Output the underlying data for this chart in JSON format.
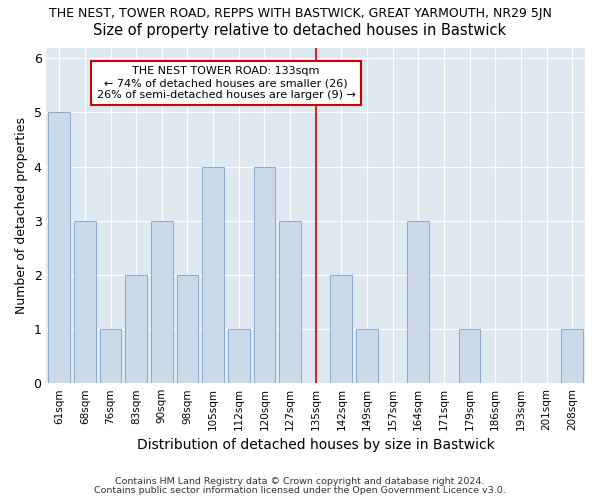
{
  "title": "THE NEST, TOWER ROAD, REPPS WITH BASTWICK, GREAT YARMOUTH, NR29 5JN",
  "subtitle": "Size of property relative to detached houses in Bastwick",
  "xlabel": "Distribution of detached houses by size in Bastwick",
  "ylabel": "Number of detached properties",
  "categories": [
    "61sqm",
    "68sqm",
    "76sqm",
    "83sqm",
    "90sqm",
    "98sqm",
    "105sqm",
    "112sqm",
    "120sqm",
    "127sqm",
    "135sqm",
    "142sqm",
    "149sqm",
    "157sqm",
    "164sqm",
    "171sqm",
    "179sqm",
    "186sqm",
    "193sqm",
    "201sqm",
    "208sqm"
  ],
  "values": [
    5,
    3,
    1,
    2,
    3,
    2,
    4,
    1,
    4,
    3,
    0,
    2,
    1,
    0,
    3,
    0,
    1,
    0,
    0,
    0,
    1
  ],
  "bar_color": "#ccd9e8",
  "bar_edge_color": "#8aaac8",
  "vline_index": 10,
  "annotation_line1": "THE NEST TOWER ROAD: 133sqm",
  "annotation_line2": "← 74% of detached houses are smaller (26)",
  "annotation_line3": "26% of semi-detached houses are larger (9) →",
  "annotation_box_color": "#ffffff",
  "annotation_box_edge": "#cc0000",
  "vline_color": "#cc0000",
  "ylim": [
    0,
    6.2
  ],
  "yticks": [
    0,
    1,
    2,
    3,
    4,
    5,
    6
  ],
  "footer1": "Contains HM Land Registry data © Crown copyright and database right 2024.",
  "footer2": "Contains public sector information licensed under the Open Government Licence v3.0.",
  "bg_color": "#dde8f0",
  "title_fontsize": 9,
  "subtitle_fontsize": 10.5,
  "xlabel_fontsize": 10,
  "ylabel_fontsize": 9
}
